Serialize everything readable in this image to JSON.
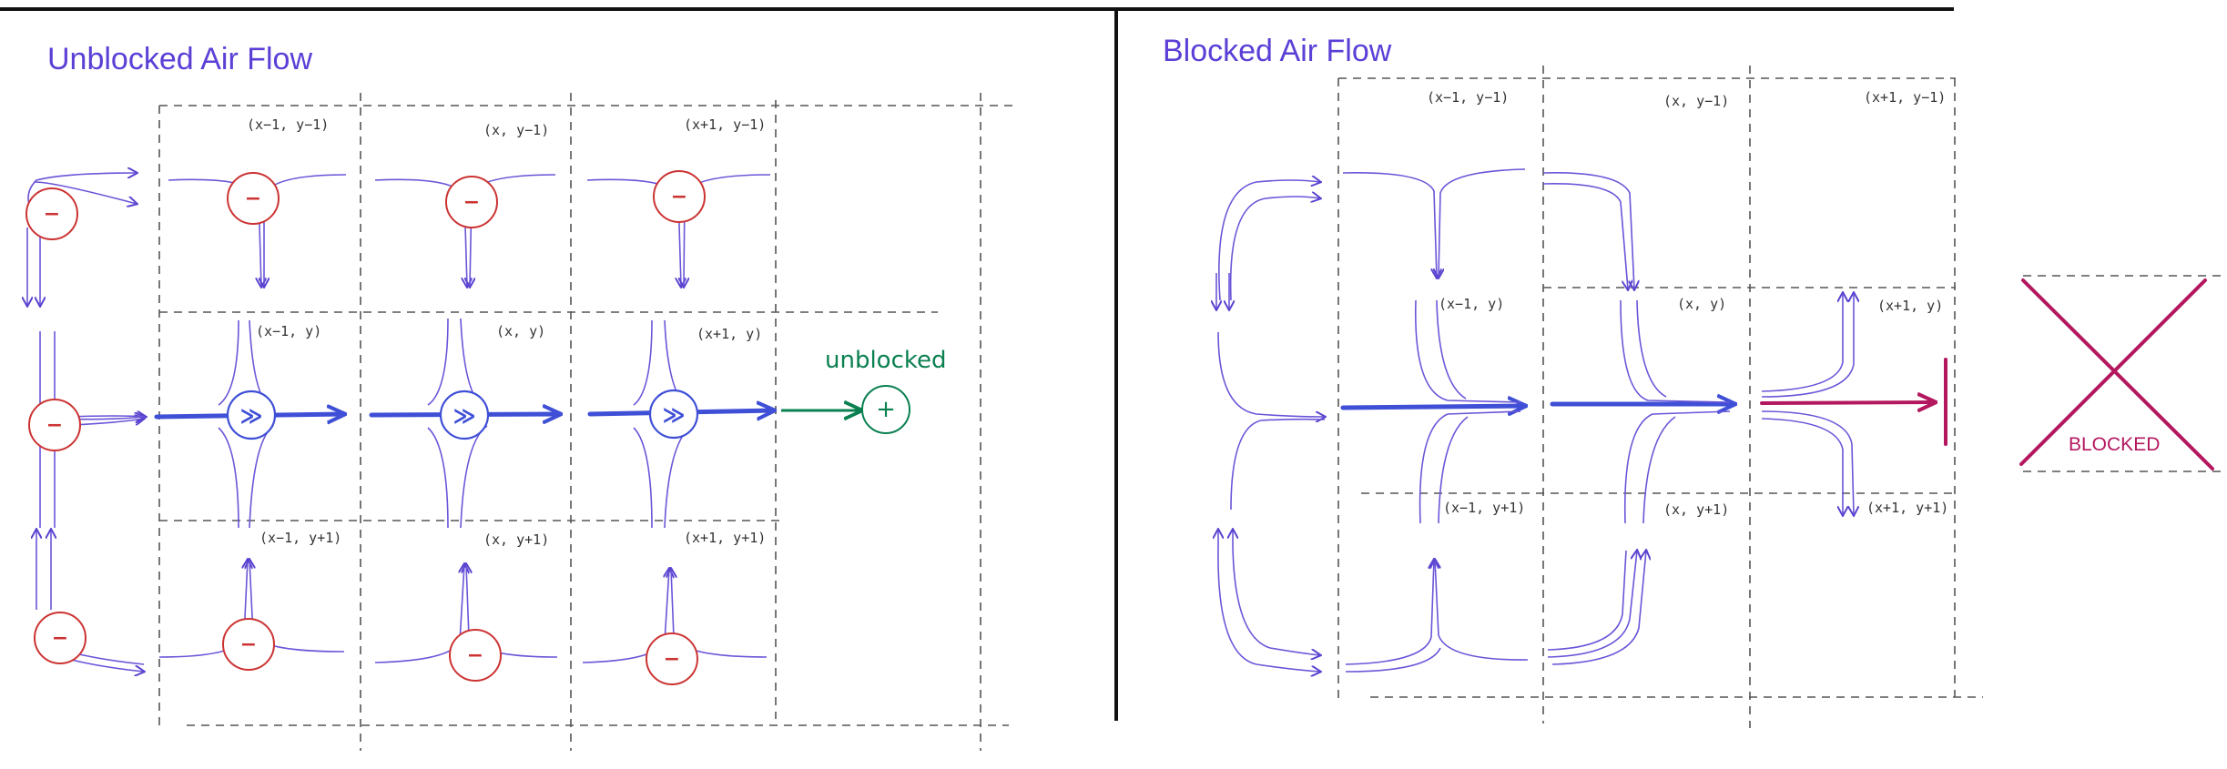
{
  "colors": {
    "title": "#5b3fd6",
    "flow": "#6a55d8",
    "fan": "#3f4fd6",
    "negative": "#cc3333",
    "unblocked": "#0a8050",
    "blocked": "#b3185f"
  },
  "left_panel": {
    "title": "Unblocked Air Flow",
    "cells": {
      "top_left": "(x−1, y−1)",
      "top_mid": "(x, y−1)",
      "top_right": "(x+1, y−1)",
      "mid_left": "(x−1, y)",
      "mid_mid": "(x, y)",
      "mid_right": "(x+1, y)",
      "bot_left": "(x−1, y+1)",
      "bot_mid": "(x, y+1)",
      "bot_right": "(x+1, y+1)"
    },
    "negative_symbol": "−",
    "fan_symbol": "≫",
    "unblocked_label": "unblocked",
    "positive_symbol": "+"
  },
  "right_panel": {
    "title": "Blocked Air Flow",
    "cells": {
      "top_left": "(x−1, y−1)",
      "top_mid": "(x, y−1)",
      "top_right": "(x+1, y−1)",
      "mid_left": "(x−1, y)",
      "mid_mid": "(x, y)",
      "mid_right": "(x+1, y)",
      "bot_left": "(x−1, y+1)",
      "bot_mid": "(x, y+1)",
      "bot_right": "(x+1, y+1)"
    },
    "blocked_label": "BLOCKED"
  }
}
